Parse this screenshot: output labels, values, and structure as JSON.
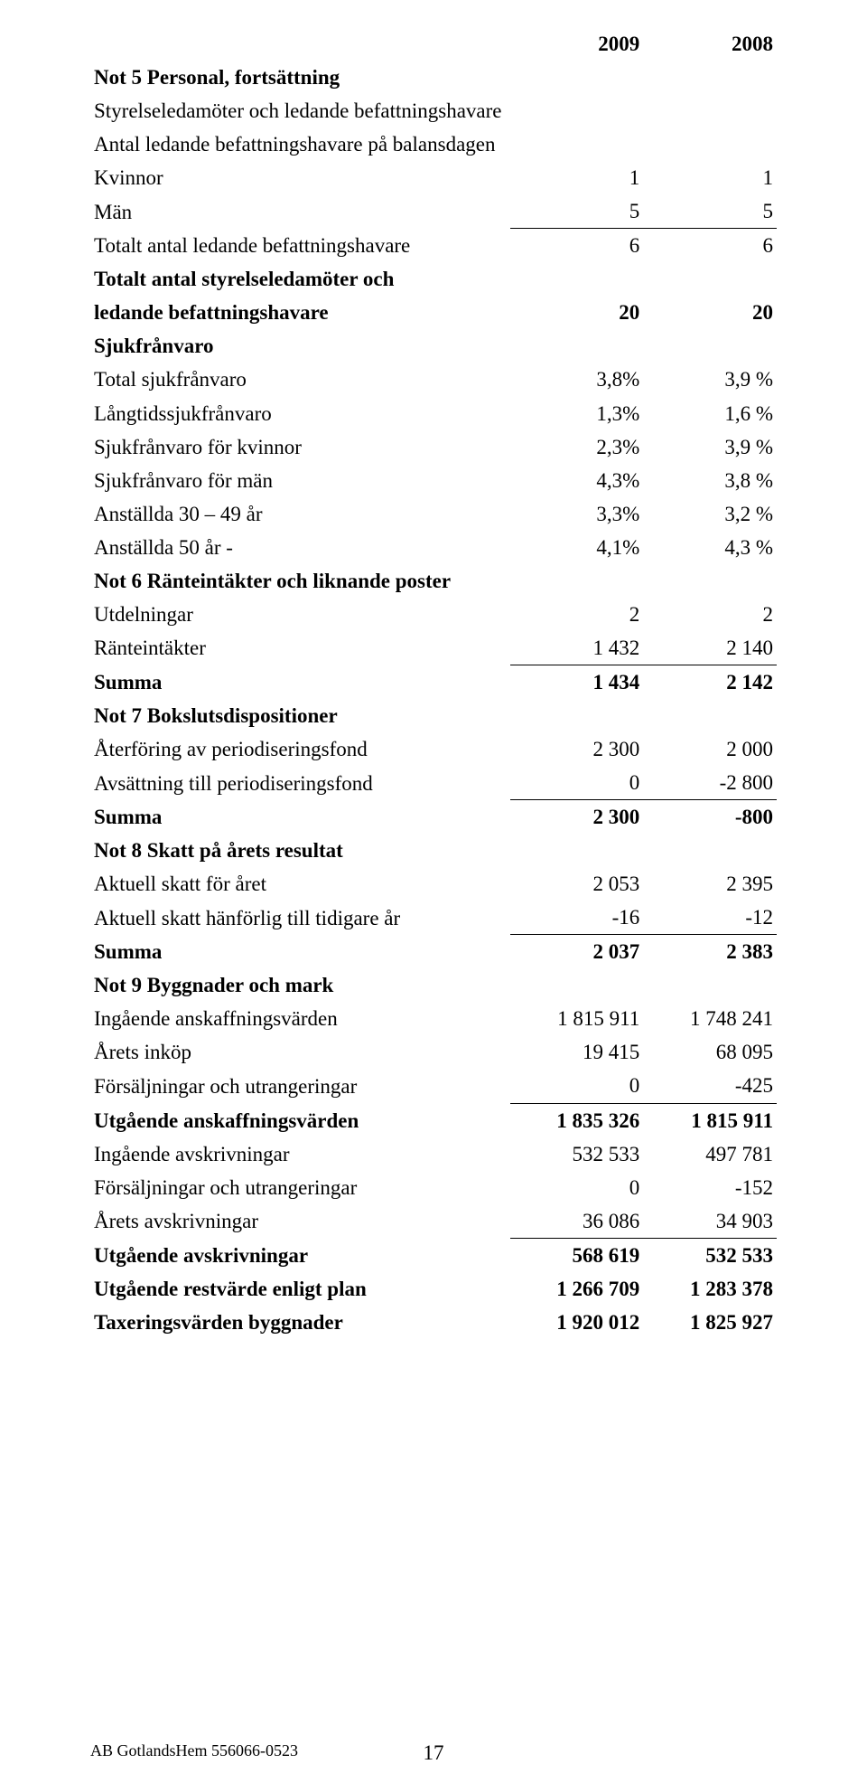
{
  "header": {
    "y2009": "2009",
    "y2008": "2008"
  },
  "not5": {
    "title": "Not 5 Personal, fortsättning",
    "sub1": "Styrelseledamöter och ledande befattningshavare",
    "sub2": "Antal ledande befattningshavare på balansdagen",
    "kvinnor": {
      "label": "Kvinnor",
      "v09": "1",
      "v08": "1"
    },
    "man": {
      "label": "Män",
      "v09": "5",
      "v08": "5"
    },
    "tot_led": {
      "label": "Totalt antal ledande befattningshavare",
      "v09": "6",
      "v08": "6"
    },
    "tot_styr": {
      "label1": "Totalt antal styrelseledamöter och",
      "label2": "ledande befattningshavare",
      "v09": "20",
      "v08": "20"
    },
    "sjuk_title": "Sjukfrånvaro",
    "sjuk_total": {
      "label": "Total sjukfrånvaro",
      "v09": "3,8%",
      "v08": "3,9 %"
    },
    "sjuk_lang": {
      "label": "Långtidssjukfrånvaro",
      "v09": "1,3%",
      "v08": "1,6 %"
    },
    "sjuk_kvinnor": {
      "label": "Sjukfrånvaro för kvinnor",
      "v09": "2,3%",
      "v08": "3,9 %"
    },
    "sjuk_man": {
      "label": "Sjukfrånvaro för män",
      "v09": "4,3%",
      "v08": "3,8 %"
    },
    "sjuk_3049": {
      "label": "Anställda 30 – 49 år",
      "v09": "3,3%",
      "v08": "3,2 %"
    },
    "sjuk_50": {
      "label": "Anställda 50 år -",
      "v09": "4,1%",
      "v08": "4,3 %"
    }
  },
  "not6": {
    "title": "Not 6 Ränteintäkter och liknande poster",
    "utd": {
      "label": "Utdelningar",
      "v09": "2",
      "v08": "2"
    },
    "ranta": {
      "label": "Ränteintäkter",
      "v09": "1 432",
      "v08": "2 140"
    },
    "summa": {
      "label": "Summa",
      "v09": "1 434",
      "v08": "2 142"
    }
  },
  "not7": {
    "title": "Not 7 Bokslutsdispositioner",
    "ater": {
      "label": "Återföring av periodiseringsfond",
      "v09": "2 300",
      "v08": "2 000"
    },
    "avs": {
      "label": "Avsättning till periodiseringsfond",
      "v09": "0",
      "v08": "-2 800"
    },
    "summa": {
      "label": "Summa",
      "v09": "2 300",
      "v08": "-800"
    }
  },
  "not8": {
    "title": "Not 8 Skatt på årets resultat",
    "akt": {
      "label": "Aktuell skatt för året",
      "v09": "2 053",
      "v08": "2 395"
    },
    "tid": {
      "label": "Aktuell skatt hänförlig till tidigare år",
      "v09": "-16",
      "v08": "-12"
    },
    "summa": {
      "label": "Summa",
      "v09": "2 037",
      "v08": "2 383"
    }
  },
  "not9": {
    "title": "Not 9 Byggnader och mark",
    "ing_ansk": {
      "label": "Ingående anskaffningsvärden",
      "v09": "1 815 911",
      "v08": "1 748 241"
    },
    "inkop": {
      "label": "Årets inköp",
      "v09": "19 415",
      "v08": "68 095"
    },
    "fors1": {
      "label": "Försäljningar och utrangeringar",
      "v09": "0",
      "v08": "-425"
    },
    "utg_ansk": {
      "label": "Utgående anskaffningsvärden",
      "v09": "1 835 326",
      "v08": "1 815 911"
    },
    "ing_avskr": {
      "label": "Ingående avskrivningar",
      "v09": "532 533",
      "v08": "497 781"
    },
    "fors2": {
      "label": "Försäljningar och utrangeringar",
      "v09": "0",
      "v08": "-152"
    },
    "arets": {
      "label": "Årets avskrivningar",
      "v09": "36 086",
      "v08": "34 903"
    },
    "utg_avskr": {
      "label": "Utgående avskrivningar",
      "v09": "568 619",
      "v08": "532 533"
    },
    "rest": {
      "label": "Utgående restvärde enligt plan",
      "v09": "1 266 709",
      "v08": "1 283 378"
    },
    "tax": {
      "label": "Taxeringsvärden byggnader",
      "v09": "1 920 012",
      "v08": "1 825 927"
    }
  },
  "footer": {
    "company": "AB GotlandsHem 556066-0523",
    "page": "17"
  }
}
